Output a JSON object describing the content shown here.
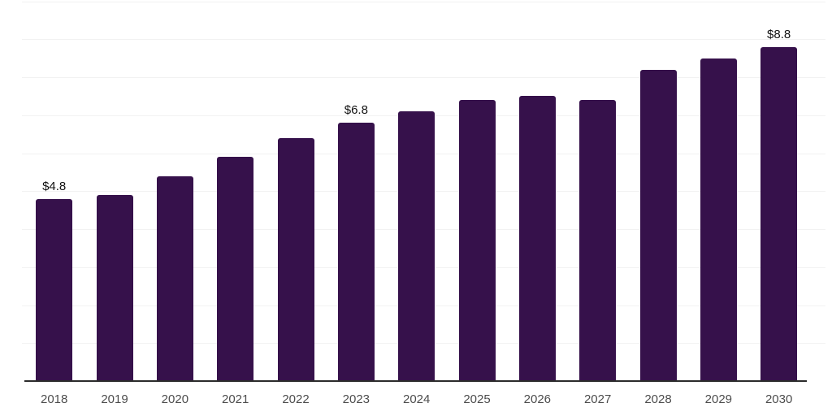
{
  "chart_data": {
    "type": "bar",
    "title": "",
    "categories": [
      "2018",
      "2019",
      "2020",
      "2021",
      "2022",
      "2023",
      "2024",
      "2025",
      "2026",
      "2027",
      "2028",
      "2029",
      "2030"
    ],
    "values": [
      4.8,
      4.9,
      5.4,
      5.9,
      6.4,
      6.8,
      7.1,
      7.4,
      7.5,
      7.4,
      8.2,
      8.5,
      8.8
    ],
    "value_unit_prefix": "$",
    "data_labels": {
      "2018": "$4.8",
      "2023": "$6.8",
      "2030": "$8.8"
    },
    "xlabel": "",
    "ylabel": "",
    "ylim": [
      0,
      10
    ],
    "gridline_values": [
      1,
      2,
      3,
      4,
      5,
      6,
      7,
      8,
      9,
      10
    ],
    "grid": "horizontal",
    "legend": "none",
    "y_axis_tick_labels": "none",
    "colors": {
      "bar": "#36114B",
      "axis": "#2B2B2B",
      "gridline": "#F2F2F2",
      "tick_label": "#4D4D4D",
      "value_label": "#111111",
      "background": "#FFFFFF"
    }
  }
}
